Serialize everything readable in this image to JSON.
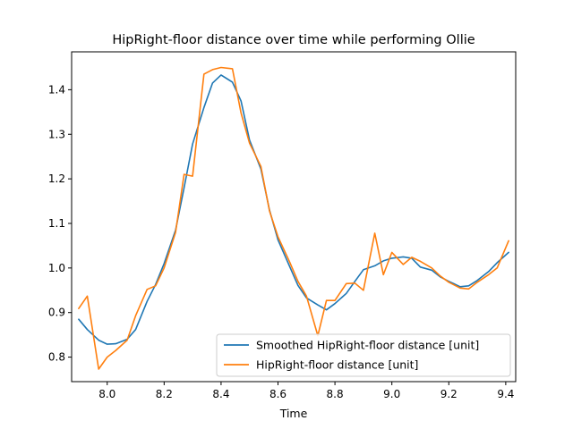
{
  "chart_data": {
    "type": "line",
    "title": "HipRight-floor distance over time while performing Ollie",
    "xlabel": "Time",
    "ylabel": "",
    "xlim": [
      7.875,
      9.435
    ],
    "ylim": [
      0.745,
      1.485
    ],
    "xticks": [
      8.0,
      8.2,
      8.4,
      8.6,
      8.8,
      9.0,
      9.2,
      9.4
    ],
    "xtick_labels": [
      "8.0",
      "8.2",
      "8.4",
      "8.6",
      "8.8",
      "9.0",
      "9.2",
      "9.4"
    ],
    "yticks": [
      0.8,
      0.9,
      1.0,
      1.1,
      1.2,
      1.3,
      1.4
    ],
    "ytick_labels": [
      "0.8",
      "0.9",
      "1.0",
      "1.1",
      "1.2",
      "1.3",
      "1.4"
    ],
    "grid": false,
    "legend_placement": "lower-right",
    "series": [
      {
        "name": "Smoothed HipRight-floor distance [unit]",
        "color": "#1f77b4",
        "x": [
          7.9,
          7.93,
          7.97,
          8.0,
          8.03,
          8.07,
          8.1,
          8.14,
          8.17,
          8.2,
          8.24,
          8.27,
          8.3,
          8.34,
          8.37,
          8.4,
          8.44,
          8.47,
          8.5,
          8.54,
          8.57,
          8.6,
          8.64,
          8.67,
          8.7,
          8.74,
          8.77,
          8.8,
          8.84,
          8.87,
          8.9,
          8.94,
          8.97,
          9.0,
          9.04,
          9.07,
          9.1,
          9.14,
          9.17,
          9.2,
          9.24,
          9.27,
          9.3,
          9.34,
          9.37,
          9.41
        ],
        "y": [
          0.885,
          0.862,
          0.838,
          0.829,
          0.83,
          0.84,
          0.862,
          0.925,
          0.963,
          1.01,
          1.085,
          1.18,
          1.278,
          1.36,
          1.415,
          1.433,
          1.417,
          1.375,
          1.287,
          1.222,
          1.13,
          1.063,
          1.005,
          0.961,
          0.933,
          0.917,
          0.906,
          0.92,
          0.943,
          0.97,
          0.996,
          1.005,
          1.016,
          1.022,
          1.025,
          1.022,
          1.002,
          0.995,
          0.98,
          0.97,
          0.958,
          0.96,
          0.972,
          0.992,
          1.012,
          1.035
        ]
      },
      {
        "name": "HipRight-floor distance [unit]",
        "color": "#ff7f0e",
        "x": [
          7.9,
          7.93,
          7.97,
          8.0,
          8.03,
          8.07,
          8.1,
          8.14,
          8.17,
          8.2,
          8.24,
          8.27,
          8.3,
          8.34,
          8.37,
          8.4,
          8.44,
          8.47,
          8.5,
          8.54,
          8.57,
          8.6,
          8.64,
          8.67,
          8.7,
          8.74,
          8.77,
          8.8,
          8.84,
          8.87,
          8.9,
          8.94,
          8.97,
          9.0,
          9.04,
          9.07,
          9.1,
          9.14,
          9.17,
          9.2,
          9.24,
          9.27,
          9.3,
          9.34,
          9.37,
          9.41
        ],
        "y": [
          0.909,
          0.937,
          0.773,
          0.8,
          0.815,
          0.838,
          0.893,
          0.952,
          0.96,
          1.0,
          1.08,
          1.21,
          1.206,
          1.435,
          1.445,
          1.45,
          1.447,
          1.348,
          1.28,
          1.228,
          1.128,
          1.07,
          1.015,
          0.97,
          0.937,
          0.848,
          0.927,
          0.927,
          0.965,
          0.966,
          0.95,
          1.078,
          0.985,
          1.035,
          1.008,
          1.024,
          1.015,
          1.0,
          0.982,
          0.968,
          0.955,
          0.953,
          0.968,
          0.985,
          1.0,
          1.061
        ]
      }
    ]
  }
}
